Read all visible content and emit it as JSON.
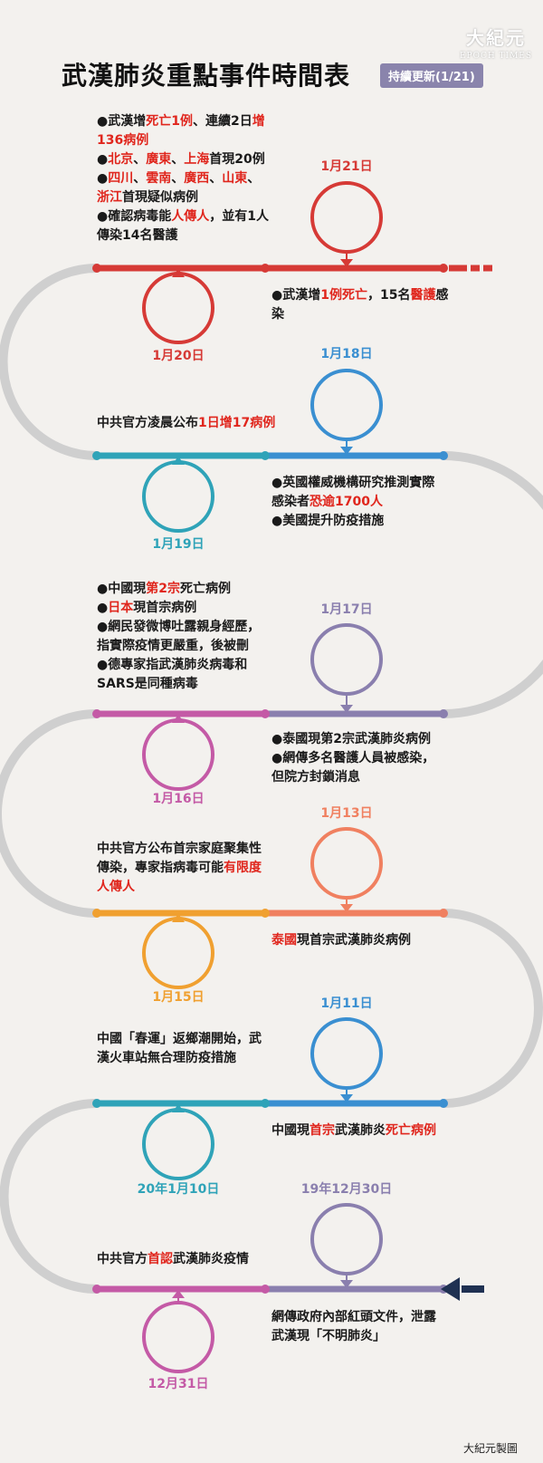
{
  "header": {
    "title": "武漢肺炎重點事件時間表",
    "badge": "持續更新(1/21)"
  },
  "logo": {
    "cn": "大紀元",
    "en": "EPOCH TIMES"
  },
  "colors": {
    "red": "#d63a36",
    "teal": "#2fa3b8",
    "blue": "#3a8fd1",
    "purple": "#8a7fae",
    "magenta": "#c45aa6",
    "orange": "#f0a030",
    "coral": "#f08060",
    "gray": "#cfcfcf",
    "highlight": "#e0261d",
    "navy": "#1f3152"
  },
  "events": [
    {
      "date": "1月21日",
      "image": "coronavirus-illustration",
      "notes": [
        [
          {
            "t": "●武漢增"
          },
          {
            "t": "1例死亡",
            "h": true
          },
          {
            "t": "，15名"
          },
          {
            "t": "醫護",
            "h": true
          },
          {
            "t": "感"
          }
        ],
        [
          {
            "t": "染"
          }
        ]
      ]
    },
    {
      "date": "1月20日",
      "image": "medical-workers-photo",
      "notes": [
        [
          {
            "t": "●武漢增"
          },
          {
            "t": "死亡1例",
            "h": true
          },
          {
            "t": "、連續2日"
          },
          {
            "t": "增",
            "h": true
          }
        ],
        [
          {
            "t": "136病例",
            "h": true
          }
        ],
        [
          {
            "t": "●"
          },
          {
            "t": "北京",
            "h": true
          },
          {
            "t": "、"
          },
          {
            "t": "廣東",
            "h": true
          },
          {
            "t": "、"
          },
          {
            "t": "上海",
            "h": true
          },
          {
            "t": "首現20例"
          }
        ],
        [
          {
            "t": "●"
          },
          {
            "t": "四川",
            "h": true
          },
          {
            "t": "、"
          },
          {
            "t": "雲南",
            "h": true
          },
          {
            "t": "、"
          },
          {
            "t": "廣西",
            "h": true
          },
          {
            "t": "、"
          },
          {
            "t": "山東",
            "h": true
          },
          {
            "t": "、"
          }
        ],
        [
          {
            "t": "浙江",
            "h": true
          },
          {
            "t": "首現疑似病例"
          }
        ],
        [
          {
            "t": "●確認病毒能"
          },
          {
            "t": "人傳人",
            "h": true
          },
          {
            "t": "，並有1人"
          }
        ],
        [
          {
            "t": "傳染14名醫護"
          }
        ]
      ]
    },
    {
      "date": "1月19日",
      "image": "nurse-with-phone-photo",
      "notes": [
        [
          {
            "t": "中共官方凌晨公布"
          },
          {
            "t": "1日增17病例",
            "h": true
          }
        ]
      ]
    },
    {
      "date": "1月18日",
      "image": "coronavirus-illustration",
      "notes": [
        [
          {
            "t": "●英國權威機構研究推測實際"
          }
        ],
        [
          {
            "t": "感染者"
          },
          {
            "t": "恐逾1700人",
            "h": true
          }
        ],
        [
          {
            "t": "●美國提升防疫措施"
          }
        ]
      ]
    },
    {
      "date": "1月17日",
      "image": "medical-staff-photo",
      "notes": [
        [
          {
            "t": "●泰國現第2宗武漢肺炎病例"
          }
        ],
        [
          {
            "t": "●網傳多名醫護人員被感染，"
          }
        ],
        [
          {
            "t": "但院方封鎖消息"
          }
        ]
      ]
    },
    {
      "date": "1月16日",
      "image": "weibo-post-screenshot",
      "notes": [
        [
          {
            "t": "●中國現"
          },
          {
            "t": "第2宗",
            "h": true
          },
          {
            "t": "死亡病例"
          }
        ],
        [
          {
            "t": "●"
          },
          {
            "t": "日本",
            "h": true
          },
          {
            "t": "現首宗病例"
          }
        ],
        [
          {
            "t": "●網民發微博吐露親身經歷，"
          }
        ],
        [
          {
            "t": "指實際疫情更嚴重，後被刪"
          }
        ],
        [
          {
            "t": "●德專家指武漢肺炎病毒和"
          }
        ],
        [
          {
            "t": "SARS是同種病毒"
          }
        ]
      ]
    },
    {
      "date": "1月15日",
      "image": "man-with-mask-photo",
      "notes": [
        [
          {
            "t": "中共官方公布首宗家庭聚集性"
          }
        ],
        [
          {
            "t": "傳染，專家指病毒可能"
          },
          {
            "t": "有限度",
            "h": true
          }
        ],
        [
          {
            "t": "人傳人",
            "h": true
          }
        ]
      ]
    },
    {
      "date": "1月13日",
      "image": "thailand-map",
      "notes": [
        [
          {
            "t": "泰國",
            "h": true
          },
          {
            "t": "現首宗武漢肺炎病例"
          }
        ]
      ]
    },
    {
      "date": "1月11日",
      "image": "train-station-crowd-photo",
      "notes": [
        [
          {
            "t": "中國現"
          },
          {
            "t": "首宗",
            "h": true
          },
          {
            "t": "武漢肺炎"
          },
          {
            "t": "死亡病例",
            "h": true
          }
        ]
      ]
    },
    {
      "date": "20年1月10日",
      "image": "ambulance-photo",
      "notes": [
        [
          {
            "t": "中國「春運」返鄉潮開始，武"
          }
        ],
        [
          {
            "t": "漢火車站無合理防疫措施"
          }
        ]
      ]
    },
    {
      "date": "19年12月30日",
      "image": "government-document",
      "notes": [
        [
          {
            "t": "網傳政府內部紅頭文件，泄露"
          }
        ],
        [
          {
            "t": "武漢現「不明肺炎」"
          }
        ]
      ]
    },
    {
      "date": "12月31日",
      "image": "health-commission-website",
      "notes": [
        [
          {
            "t": "中共官方"
          },
          {
            "t": "首認",
            "h": true
          },
          {
            "t": "武漢肺炎疫情"
          }
        ]
      ]
    }
  ],
  "credit": "大紀元製圖"
}
